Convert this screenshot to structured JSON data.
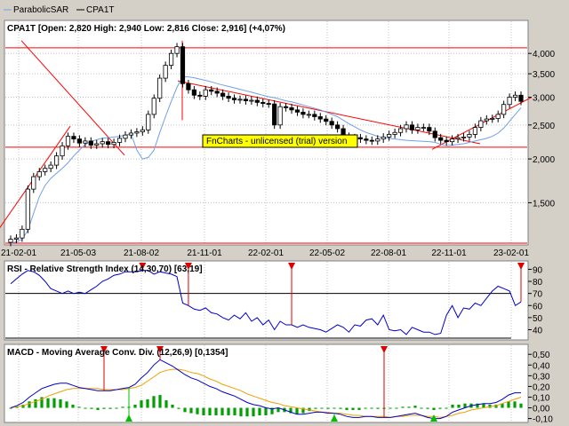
{
  "legend": {
    "sar_label": "ParabolicSAR",
    "series_label": "CPA1T"
  },
  "watermark": "FnCharts - unlicensed (trial) version",
  "colors": {
    "background": "#ffffff",
    "frame": "#d4d0c8",
    "grid": "#c0c0c0",
    "candle_up": "#ffffff",
    "candle_down": "#000000",
    "sar": "#6fa0e8",
    "trend_lines": "#ff0000",
    "rsi_line": "#0000c8",
    "macd_line": "#0000c8",
    "signal_line": "#f0a000",
    "histogram": "#00a000",
    "buy_marker": "#00c000",
    "sell_marker": "#e00000",
    "watermark_bg": "#ffff00"
  },
  "chart_data": [
    {
      "type": "candlestick",
      "title": "CPA1T [Open: 2,820  High: 2,940  Low: 2,816  Close: 2,916] (+4,07%)",
      "x_tick_labels": [
        "21-02-01",
        "21-05-03",
        "21-08-02",
        "21-11-01",
        "22-02-01",
        "22-05-02",
        "22-08-01",
        "22-11-01",
        "23-02-01"
      ],
      "y_tick_labels": [
        "4,000",
        "3,500",
        "3,000",
        "2,500",
        "2,000",
        "1,500"
      ],
      "y_ticks": [
        4000,
        3500,
        3000,
        2500,
        2000,
        1500
      ],
      "y_scale": "log",
      "ylim": [
        1150,
        4500
      ],
      "close": [
        1180,
        1190,
        1260,
        1640,
        1780,
        1840,
        1880,
        1920,
        2040,
        2180,
        2320,
        2280,
        2220,
        2250,
        2190,
        2210,
        2240,
        2200,
        2230,
        2290,
        2340,
        2370,
        2390,
        2420,
        2680,
        2980,
        3400,
        3700,
        4000,
        4180,
        3280,
        3150,
        3040,
        3020,
        3150,
        3120,
        3080,
        3020,
        2980,
        2950,
        2960,
        2930,
        2940,
        2900,
        2880,
        2870,
        2500,
        2820,
        2800,
        2760,
        2720,
        2680,
        2680,
        2640,
        2600,
        2560,
        2500,
        2440,
        2320,
        2300,
        2300,
        2280,
        2260,
        2250,
        2280,
        2310,
        2350,
        2380,
        2440,
        2500,
        2420,
        2460,
        2460,
        2400,
        2300,
        2260,
        2240,
        2280,
        2300,
        2310,
        2350,
        2460,
        2570,
        2600,
        2610,
        2680,
        2860,
        3000,
        3040,
        2920
      ],
      "sar": [
        1150,
        1160,
        1180,
        1250,
        1400,
        1560,
        1680,
        1760,
        1820,
        1880,
        1950,
        2040,
        2120,
        2200,
        2240,
        2270,
        2290,
        2300,
        2310,
        2320,
        2340,
        2360,
        2120,
        2000,
        2020,
        2120,
        2380,
        2640,
        2920,
        3200,
        3430,
        3430,
        3410,
        3380,
        3350,
        3320,
        3280,
        3250,
        3220,
        3190,
        3160,
        3130,
        3100,
        3070,
        3040,
        3010,
        2990,
        2960,
        2930,
        2910,
        2880,
        2850,
        2820,
        2790,
        2760,
        2720,
        2680,
        2640,
        2580,
        2520,
        2470,
        2420,
        2380,
        2350,
        2320,
        2300,
        2290,
        2280,
        2270,
        2260,
        2255,
        2250,
        2245,
        2240,
        2230,
        2200,
        2180,
        2190,
        2200,
        2210,
        2230,
        2250,
        2270,
        2290,
        2320,
        2370,
        2450,
        2560,
        2680,
        2800
      ],
      "horizontal_levels": [
        4150,
        2160,
        1150
      ],
      "trend_lines": [
        {
          "from": [
            "21-02-01",
            1100
          ],
          "to": [
            "21-05-03",
            2480
          ]
        },
        {
          "from": [
            "21-08-02",
            2050
          ],
          "to": [
            "21-11-01",
            4350
          ]
        },
        {
          "from": [
            "21-11-01",
            2580
          ],
          "to": [
            "21-11-01",
            4350
          ]
        },
        {
          "from": [
            "21-11-01",
            3340
          ],
          "to": [
            "22-11-01",
            2210
          ]
        },
        {
          "from": [
            "22-11-01",
            2130
          ],
          "to": [
            "23-02-01",
            3000
          ]
        }
      ]
    },
    {
      "type": "line",
      "title": "RSI - Relative Strength Index (14,30,70) [63,19]",
      "y_tick_labels": [
        "90",
        "80",
        "70",
        "60",
        "50",
        "40"
      ],
      "y_ticks": [
        90,
        80,
        70,
        60,
        50,
        40
      ],
      "ylim": [
        33,
        94
      ],
      "reference_lines": [
        70,
        30
      ],
      "series": [
        {
          "values": [
            78,
            82,
            86,
            89,
            88,
            85,
            80,
            74,
            72,
            70,
            72,
            70,
            71,
            70,
            73,
            76,
            80,
            82,
            85,
            86,
            88,
            88,
            88,
            89,
            89,
            86,
            88,
            87,
            86,
            84,
            62,
            60,
            57,
            56,
            58,
            54,
            53,
            50,
            48,
            52,
            49,
            54,
            47,
            50,
            44,
            48,
            40,
            47,
            44,
            44,
            42,
            44,
            42,
            41,
            40,
            38,
            41,
            44,
            42,
            38,
            44,
            43,
            48,
            49,
            44,
            52,
            40,
            39,
            40,
            36,
            42,
            40,
            38,
            38,
            36,
            37,
            52,
            60,
            50,
            58,
            57,
            62,
            60,
            66,
            72,
            76,
            74,
            72,
            60,
            63
          ]
        }
      ],
      "sell_signals_at_index": [
        23,
        31,
        49,
        96
      ],
      "buy_signals_at_index": []
    },
    {
      "type": "line",
      "title": "MACD - Moving Average Conv. Div. (12,26,9) [0,1354]",
      "y_tick_labels": [
        "0,50",
        "0,40",
        "0,30",
        "0,20",
        "0,10",
        "0,00",
        "-0,10"
      ],
      "y_ticks": [
        0.5,
        0.4,
        0.3,
        0.2,
        0.1,
        0.0,
        -0.1
      ],
      "ylim": [
        -0.12,
        0.56
      ],
      "series": [
        {
          "name": "macd",
          "values": [
            0.0,
            0.02,
            0.05,
            0.1,
            0.14,
            0.18,
            0.2,
            0.22,
            0.23,
            0.23,
            0.21,
            0.19,
            0.18,
            0.17,
            0.16,
            0.16,
            0.16,
            0.17,
            0.18,
            0.19,
            0.22,
            0.28,
            0.33,
            0.4,
            0.45,
            0.42,
            0.39,
            0.35,
            0.31,
            0.28,
            0.26,
            0.23,
            0.2,
            0.18,
            0.15,
            0.13,
            0.11,
            0.08,
            0.05,
            0.03,
            0.02,
            0.0,
            -0.01,
            0.0,
            -0.02,
            -0.04,
            -0.06,
            -0.06,
            -0.05,
            -0.04,
            -0.04,
            -0.05,
            -0.05,
            -0.06,
            -0.08,
            -0.09,
            -0.09,
            -0.08,
            -0.08,
            -0.09,
            -0.09,
            -0.09,
            -0.08,
            -0.07,
            -0.06,
            -0.05,
            -0.07,
            -0.09,
            -0.1,
            -0.1,
            -0.08,
            -0.04,
            -0.02,
            0.0,
            0.02,
            0.03,
            0.04,
            0.04,
            0.05,
            0.08,
            0.12,
            0.14,
            0.14
          ]
        },
        {
          "name": "signal",
          "values": [
            0.0,
            0.01,
            0.02,
            0.04,
            0.06,
            0.08,
            0.11,
            0.13,
            0.15,
            0.17,
            0.18,
            0.18,
            0.18,
            0.18,
            0.18,
            0.17,
            0.17,
            0.17,
            0.17,
            0.18,
            0.19,
            0.21,
            0.25,
            0.29,
            0.33,
            0.35,
            0.36,
            0.36,
            0.35,
            0.33,
            0.32,
            0.3,
            0.27,
            0.25,
            0.22,
            0.2,
            0.18,
            0.16,
            0.13,
            0.11,
            0.09,
            0.07,
            0.05,
            0.04,
            0.02,
            0.01,
            0.0,
            -0.01,
            -0.02,
            -0.03,
            -0.04,
            -0.04,
            -0.05,
            -0.05,
            -0.06,
            -0.07,
            -0.07,
            -0.08,
            -0.08,
            -0.08,
            -0.08,
            -0.09,
            -0.08,
            -0.08,
            -0.07,
            -0.07,
            -0.07,
            -0.08,
            -0.08,
            -0.09,
            -0.08,
            -0.07,
            -0.05,
            -0.04,
            -0.02,
            -0.01,
            0.0,
            0.01,
            0.02,
            0.04,
            0.06,
            0.08,
            0.1
          ]
        }
      ],
      "sell_signals_at_index": [
        15,
        24,
        60
      ],
      "buy_signals_at_index": [
        19,
        52,
        68
      ]
    }
  ]
}
